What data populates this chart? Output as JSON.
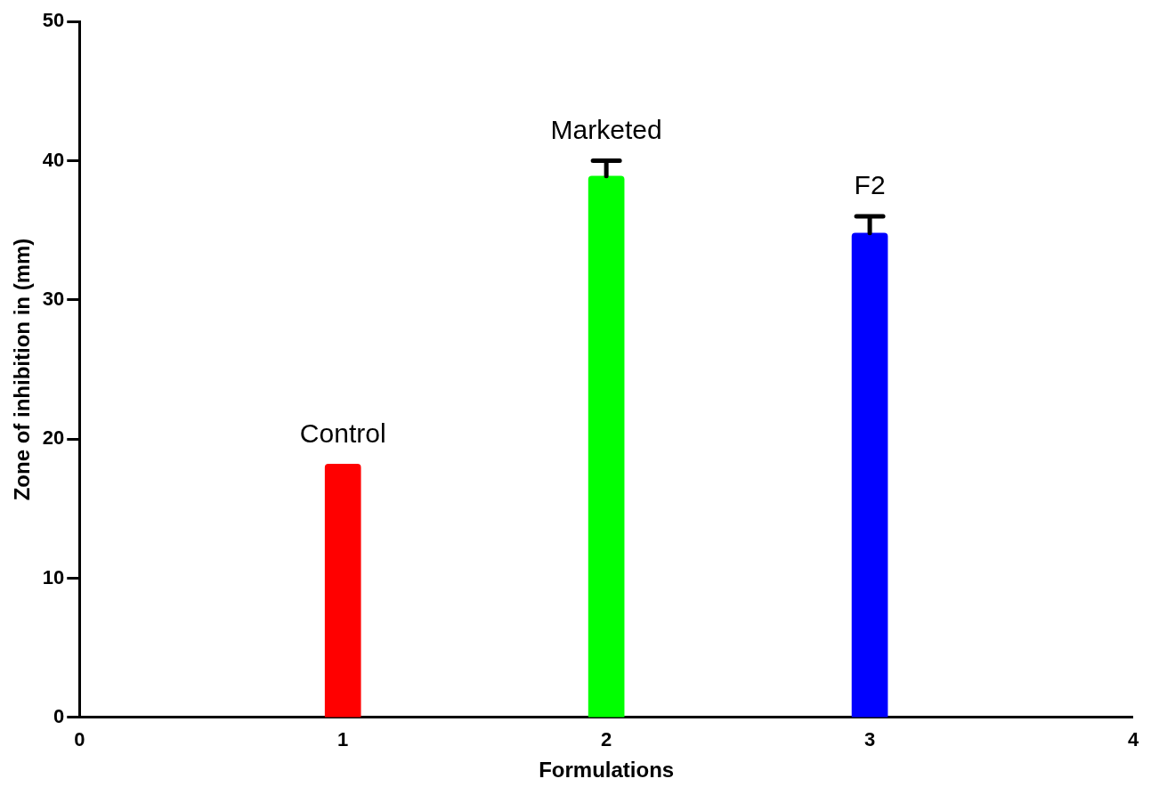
{
  "chart_data": {
    "type": "bar",
    "xlabel": "Formulations",
    "ylabel": "Zone of inhibition in (mm)",
    "x": [
      1,
      2,
      3
    ],
    "values": [
      18.2,
      38.9,
      34.8
    ],
    "colors": [
      "#ff0000",
      "#00ff00",
      "#0000ff"
    ],
    "errors": [
      null,
      [
        38.9,
        40.0
      ],
      [
        34.8,
        36.0
      ]
    ],
    "xlim": [
      0,
      4
    ],
    "xticks": [
      0,
      1,
      2,
      3,
      4
    ],
    "ylim": [
      0,
      50
    ],
    "yticks": [
      0,
      10,
      20,
      30,
      40,
      50
    ],
    "grid": false,
    "legend": false,
    "annotations": [
      {
        "text": "Control",
        "x": 1,
        "y": 18.2
      },
      {
        "text": "Marketed",
        "x": 2,
        "y": 38.9
      },
      {
        "text": "F2",
        "x": 3,
        "y": 34.8
      }
    ]
  }
}
